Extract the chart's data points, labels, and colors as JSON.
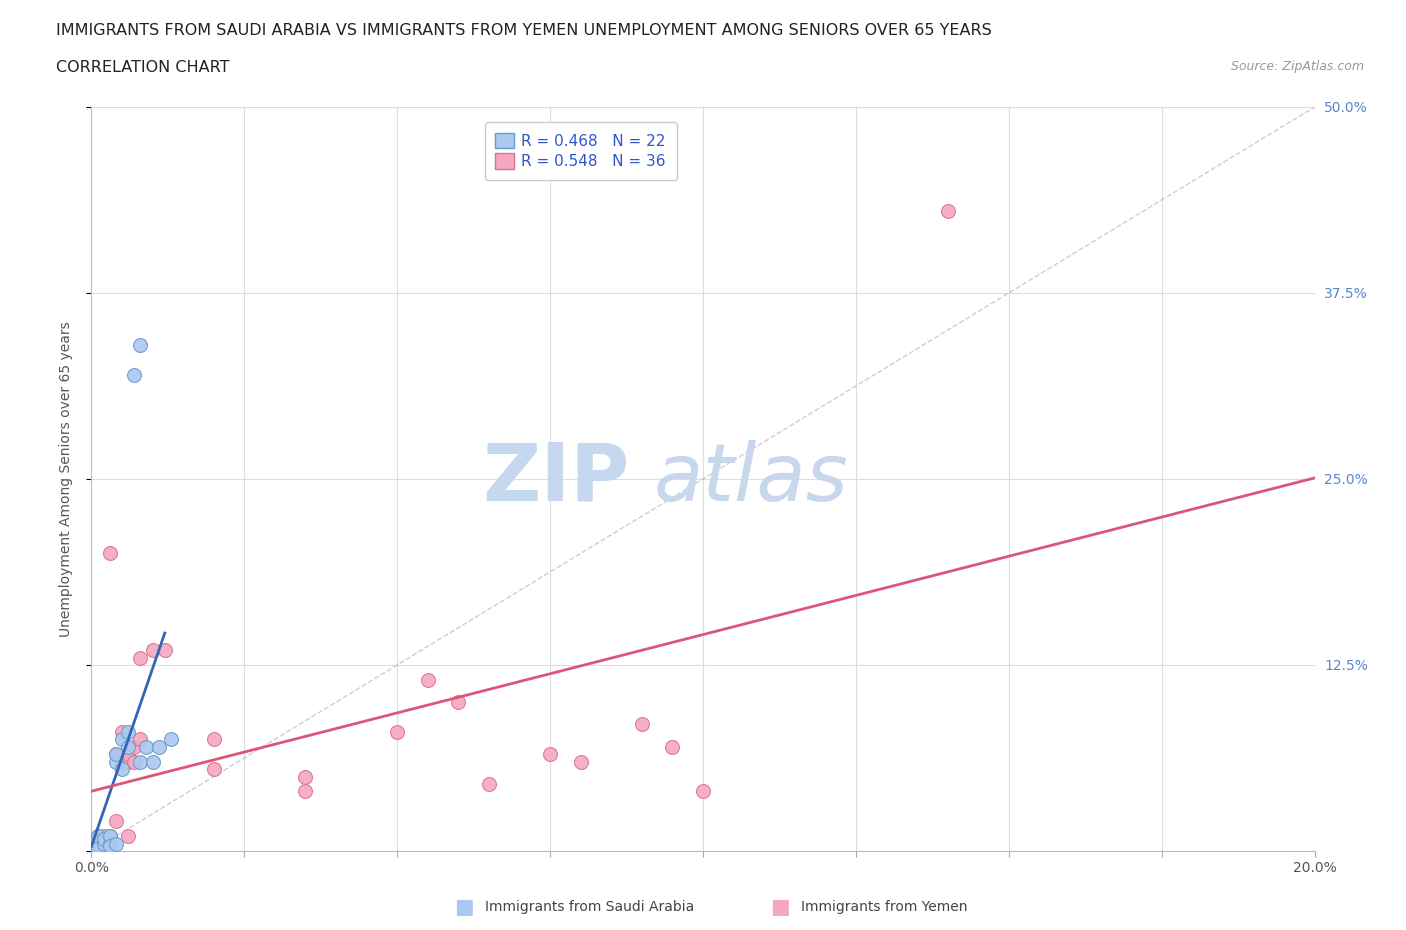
{
  "title_line1": "IMMIGRANTS FROM SAUDI ARABIA VS IMMIGRANTS FROM YEMEN UNEMPLOYMENT AMONG SENIORS OVER 65 YEARS",
  "title_line2": "CORRELATION CHART",
  "source_text": "Source: ZipAtlas.com",
  "ylabel": "Unemployment Among Seniors over 65 years",
  "xlim": [
    0.0,
    0.2
  ],
  "ylim": [
    0.0,
    0.5
  ],
  "xticks": [
    0.0,
    0.025,
    0.05,
    0.075,
    0.1,
    0.125,
    0.15,
    0.175,
    0.2
  ],
  "yticks": [
    0.0,
    0.125,
    0.25,
    0.375,
    0.5
  ],
  "saudi_color": "#aac8f0",
  "saudi_edge_color": "#6699cc",
  "yemen_color": "#f5a8c0",
  "yemen_edge_color": "#dd7090",
  "saudi_line_color": "#3366bb",
  "yemen_line_color": "#dd5577",
  "watermark_zip_color": "#c8ddf0",
  "watermark_atlas_color": "#c8ddf0",
  "r_saudi": 0.468,
  "n_saudi": 22,
  "r_yemen": 0.548,
  "n_yemen": 36,
  "legend_r_color": "#3355cc",
  "saudi_scatter_x": [
    0.001,
    0.001,
    0.001,
    0.002,
    0.002,
    0.003,
    0.003,
    0.003,
    0.004,
    0.004,
    0.004,
    0.005,
    0.005,
    0.006,
    0.006,
    0.007,
    0.008,
    0.008,
    0.009,
    0.01,
    0.011,
    0.013
  ],
  "saudi_scatter_y": [
    0.005,
    0.01,
    0.002,
    0.005,
    0.008,
    0.005,
    0.01,
    0.003,
    0.005,
    0.06,
    0.065,
    0.055,
    0.075,
    0.07,
    0.08,
    0.32,
    0.34,
    0.06,
    0.07,
    0.06,
    0.07,
    0.075
  ],
  "yemen_scatter_x": [
    0.001,
    0.001,
    0.001,
    0.002,
    0.002,
    0.002,
    0.003,
    0.003,
    0.003,
    0.004,
    0.004,
    0.005,
    0.005,
    0.006,
    0.006,
    0.006,
    0.007,
    0.007,
    0.008,
    0.008,
    0.01,
    0.012,
    0.02,
    0.02,
    0.035,
    0.035,
    0.05,
    0.055,
    0.06,
    0.065,
    0.075,
    0.08,
    0.09,
    0.095,
    0.1,
    0.14
  ],
  "yemen_scatter_y": [
    0.01,
    0.005,
    0.002,
    0.005,
    0.01,
    0.003,
    0.005,
    0.01,
    0.2,
    0.065,
    0.02,
    0.06,
    0.08,
    0.06,
    0.065,
    0.01,
    0.07,
    0.06,
    0.075,
    0.13,
    0.135,
    0.135,
    0.055,
    0.075,
    0.04,
    0.05,
    0.08,
    0.115,
    0.1,
    0.045,
    0.065,
    0.06,
    0.085,
    0.07,
    0.04,
    0.43
  ],
  "background_color": "#ffffff",
  "grid_color": "#dddddd",
  "title_fontsize": 11.5,
  "axis_label_fontsize": 10,
  "tick_fontsize": 10,
  "legend_fontsize": 11
}
